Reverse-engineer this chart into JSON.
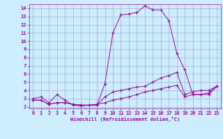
{
  "xlabel": "Windchill (Refroidissement éolien,°C)",
  "background_color": "#cceeff",
  "line_color": "#990099",
  "grid_color": "#aaaacc",
  "xlim": [
    -0.5,
    23.5
  ],
  "ylim": [
    1.8,
    14.5
  ],
  "xticks": [
    0,
    1,
    2,
    3,
    4,
    5,
    6,
    7,
    8,
    9,
    10,
    11,
    12,
    13,
    14,
    15,
    16,
    17,
    18,
    19,
    20,
    21,
    22,
    23
  ],
  "yticks": [
    2,
    3,
    4,
    5,
    6,
    7,
    8,
    9,
    10,
    11,
    12,
    13,
    14
  ],
  "line1_x": [
    0,
    1,
    2,
    3,
    4,
    5,
    6,
    7,
    8,
    9,
    10,
    11,
    12,
    13,
    14,
    15,
    16,
    17,
    18,
    19,
    20,
    21,
    22,
    23
  ],
  "line1_y": [
    3.0,
    3.2,
    2.5,
    3.5,
    2.8,
    2.2,
    2.1,
    2.2,
    2.2,
    4.8,
    11.0,
    13.2,
    13.3,
    13.5,
    14.3,
    13.8,
    13.8,
    12.5,
    8.5,
    6.5,
    3.5,
    3.5,
    3.5,
    4.5
  ],
  "line2_x": [
    0,
    1,
    2,
    3,
    4,
    5,
    6,
    7,
    8,
    9,
    10,
    11,
    12,
    13,
    14,
    15,
    16,
    17,
    18,
    19,
    20,
    21,
    22,
    23
  ],
  "line2_y": [
    2.8,
    2.8,
    2.3,
    2.5,
    2.5,
    2.3,
    2.2,
    2.2,
    2.2,
    3.2,
    3.8,
    4.0,
    4.2,
    4.4,
    4.5,
    5.0,
    5.5,
    5.8,
    6.2,
    3.5,
    3.8,
    4.0,
    4.0,
    4.5
  ],
  "line3_x": [
    0,
    1,
    2,
    3,
    4,
    5,
    6,
    7,
    8,
    9,
    10,
    11,
    12,
    13,
    14,
    15,
    16,
    17,
    18,
    19,
    20,
    21,
    22,
    23
  ],
  "line3_y": [
    2.8,
    2.8,
    2.3,
    2.5,
    2.5,
    2.3,
    2.2,
    2.2,
    2.3,
    2.5,
    2.8,
    3.0,
    3.2,
    3.5,
    3.8,
    4.0,
    4.2,
    4.4,
    4.6,
    3.2,
    3.5,
    3.5,
    3.7,
    4.5
  ],
  "label_fontsize": 5,
  "tick_fontsize": 5
}
